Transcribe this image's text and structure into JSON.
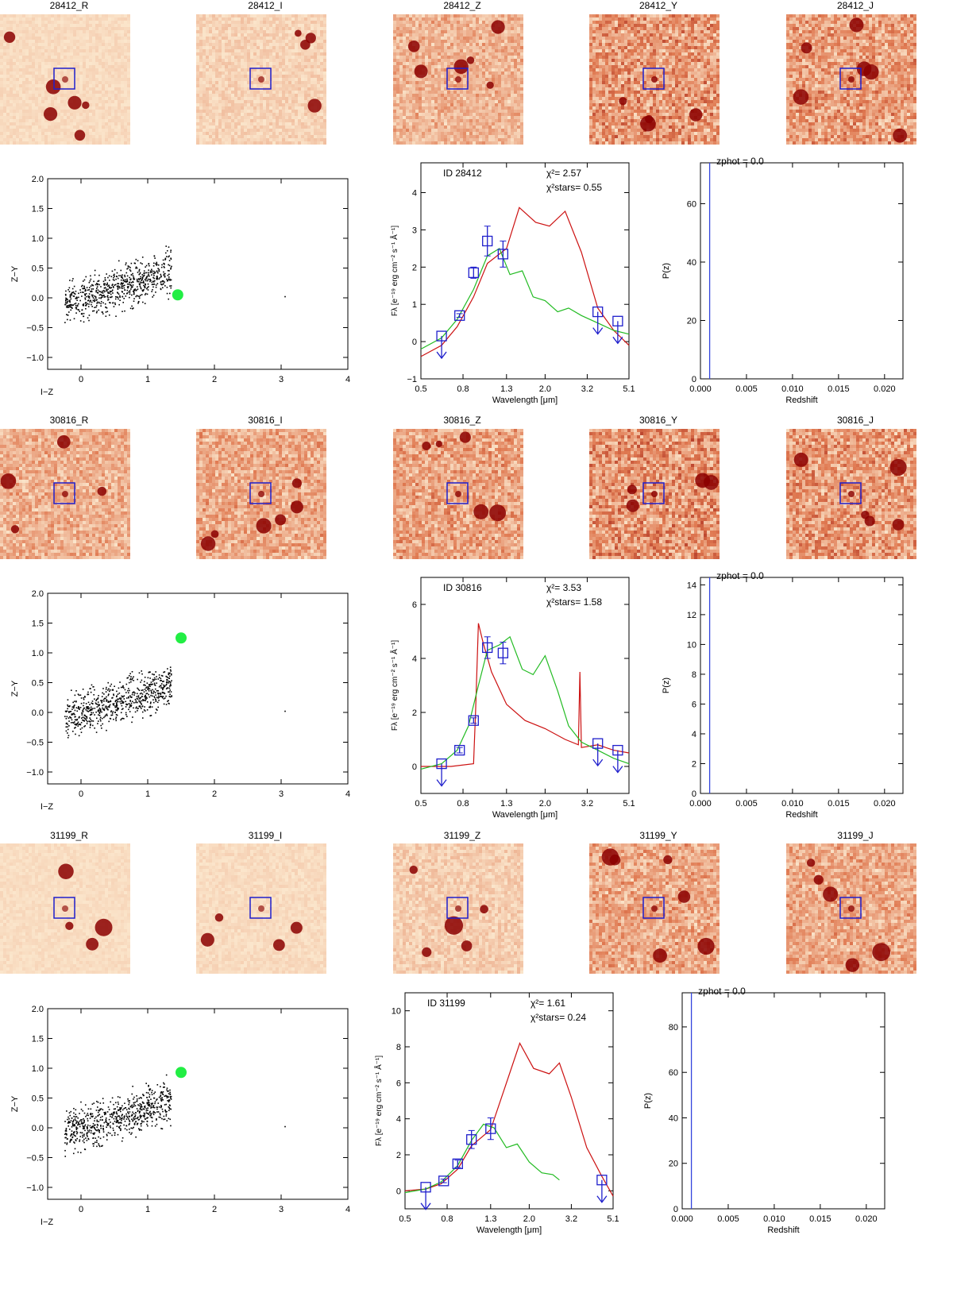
{
  "objects": [
    {
      "id": "28412",
      "stamps": [
        {
          "label": "28412_R",
          "bright": 0.1
        },
        {
          "label": "28412_I",
          "bright": 0.18
        },
        {
          "label": "28412_Z",
          "bright": 0.32
        },
        {
          "label": "28412_Y",
          "bright": 0.55
        },
        {
          "label": "28412_J",
          "bright": 0.5
        }
      ]
    },
    {
      "id": "30816",
      "stamps": [
        {
          "label": "30816_R",
          "bright": 0.35
        },
        {
          "label": "30816_I",
          "bright": 0.4
        },
        {
          "label": "30816_Z",
          "bright": 0.45
        },
        {
          "label": "30816_Y",
          "bright": 0.58
        },
        {
          "label": "30816_J",
          "bright": 0.52
        }
      ]
    },
    {
      "id": "31199",
      "stamps": [
        {
          "label": "31199_R",
          "bright": 0.08
        },
        {
          "label": "31199_I",
          "bright": 0.1
        },
        {
          "label": "31199_Z",
          "bright": 0.22
        },
        {
          "label": "31199_Y",
          "bright": 0.42
        },
        {
          "label": "31199_J",
          "bright": 0.4
        }
      ]
    }
  ],
  "chart_data": [
    {
      "type": "scatter",
      "id": "28412",
      "xlabel": "I−Z",
      "ylabel": "Z−Y",
      "xlim": [
        -0.5,
        4
      ],
      "ylim": [
        -1.2,
        2.0
      ],
      "xticks": [
        "0",
        "1",
        "2",
        "3",
        "4"
      ],
      "xtick_values": [
        0,
        1,
        2,
        3,
        4
      ],
      "yticks": [
        "2.0",
        "1.5",
        "1.0",
        "0.5",
        "0.0",
        "−0.5",
        "−1.0"
      ],
      "ytick_values": [
        2.0,
        1.5,
        1.0,
        0.5,
        0.0,
        -0.5,
        -1.0
      ],
      "highlight_point": {
        "x": 1.45,
        "y": 0.05,
        "color": "#22ee44"
      },
      "stars_note": "star locus cloud around x -0.2 to 1.4, y -0.6 to 0.6"
    },
    {
      "type": "line",
      "id": "28412",
      "title": "ID 28412",
      "chi2_label": "χ²=",
      "chi2": "2.57",
      "chi2_stars_label": "χ²stars=",
      "chi2_stars": "0.55",
      "xlabel": "Wavelength [μm]",
      "ylabel": "Fλ [e⁻¹⁹ erg cm⁻² s⁻¹ Å⁻¹]",
      "xticks": [
        "0.5",
        "0.8",
        "1.3",
        "2.0",
        "3.2",
        "5.1"
      ],
      "xtick_values": [
        0.5,
        0.8,
        1.3,
        2.0,
        3.2,
        5.1
      ],
      "ylim": [
        -1,
        4.8
      ],
      "yticks": [
        "4",
        "3",
        "2",
        "1",
        "0",
        "−1"
      ],
      "ytick_values": [
        4,
        3,
        2,
        1,
        0,
        -1
      ],
      "series": [
        {
          "name": "galaxy fit",
          "color": "#cc1111",
          "x": [
            0.5,
            0.63,
            0.75,
            0.9,
            1.05,
            1.3,
            1.5,
            1.8,
            2.1,
            2.5,
            3.0,
            3.6,
            4.3,
            5.1
          ],
          "values": [
            -0.4,
            -0.1,
            0.4,
            1.2,
            2.1,
            2.5,
            3.6,
            3.2,
            3.1,
            3.5,
            2.4,
            0.9,
            0.3,
            -0.1
          ]
        },
        {
          "name": "star fit",
          "color": "#22bb22",
          "x": [
            0.5,
            0.63,
            0.75,
            0.9,
            1.05,
            1.2,
            1.35,
            1.55,
            1.75,
            2.0,
            2.3,
            2.6,
            3.0,
            3.6,
            4.3,
            5.1
          ],
          "values": [
            -0.2,
            0.1,
            0.6,
            1.4,
            2.3,
            2.5,
            1.8,
            1.9,
            1.2,
            1.1,
            0.8,
            0.9,
            0.7,
            0.5,
            0.3,
            0.2
          ]
        }
      ],
      "photometry": [
        {
          "x": 0.63,
          "y": 0.15,
          "upper_limit": true
        },
        {
          "x": 0.77,
          "y": 0.7,
          "err": 0.05
        },
        {
          "x": 0.9,
          "y": 1.85,
          "err": 0.15
        },
        {
          "x": 1.05,
          "y": 2.7,
          "err": 0.4
        },
        {
          "x": 1.25,
          "y": 2.35,
          "err": 0.35
        },
        {
          "x": 3.6,
          "y": 0.8,
          "upper_limit": true
        },
        {
          "x": 4.5,
          "y": 0.55,
          "upper_limit": true
        }
      ]
    },
    {
      "type": "line",
      "id": "28412",
      "xlabel": "Redshift",
      "ylabel": "P(z)",
      "annotation": "zphot = 0.0",
      "xlim": [
        0,
        0.022
      ],
      "xticks": [
        "0.000",
        "0.005",
        "0.010",
        "0.015",
        "0.020"
      ],
      "xtick_values": [
        0,
        0.005,
        0.01,
        0.015,
        0.02
      ],
      "ylim": [
        0,
        74
      ],
      "yticks": [
        "60",
        "40",
        "20",
        "0"
      ],
      "ytick_values": [
        60,
        40,
        20,
        0
      ],
      "spike": {
        "x": 0.001,
        "value": 74
      }
    },
    {
      "type": "scatter",
      "id": "30816",
      "xlabel": "I−Z",
      "ylabel": "Z−Y",
      "xlim": [
        -0.5,
        4
      ],
      "ylim": [
        -1.2,
        2.0
      ],
      "xticks": [
        "0",
        "1",
        "2",
        "3",
        "4"
      ],
      "xtick_values": [
        0,
        1,
        2,
        3,
        4
      ],
      "yticks": [
        "2.0",
        "1.5",
        "1.0",
        "0.5",
        "0.0",
        "−0.5",
        "−1.0"
      ],
      "ytick_values": [
        2.0,
        1.5,
        1.0,
        0.5,
        0.0,
        -0.5,
        -1.0
      ],
      "highlight_point": {
        "x": 1.5,
        "y": 1.25,
        "color": "#22ee44"
      }
    },
    {
      "type": "line",
      "id": "30816",
      "title": "ID 30816",
      "chi2_label": "χ²=",
      "chi2": "3.53",
      "chi2_stars_label": "χ²stars=",
      "chi2_stars": "1.58",
      "xlabel": "Wavelength [μm]",
      "ylabel": "Fλ [e⁻¹⁹ erg cm⁻² s⁻¹ Å⁻¹]",
      "xticks": [
        "0.5",
        "0.8",
        "1.3",
        "2.0",
        "3.2",
        "5.1"
      ],
      "xtick_values": [
        0.5,
        0.8,
        1.3,
        2.0,
        3.2,
        5.1
      ],
      "ylim": [
        -1,
        7
      ],
      "yticks": [
        "6",
        "4",
        "2",
        "0"
      ],
      "ytick_values": [
        6,
        4,
        2,
        0
      ],
      "series": [
        {
          "name": "galaxy fit",
          "color": "#cc1111",
          "x": [
            0.5,
            0.7,
            0.9,
            0.92,
            0.95,
            1.0,
            1.1,
            1.3,
            1.6,
            2.0,
            2.5,
            2.9,
            2.95,
            3.0,
            3.6,
            4.3,
            5.1
          ],
          "values": [
            0.0,
            0.0,
            0.1,
            2.0,
            5.3,
            4.6,
            3.5,
            2.3,
            1.7,
            1.4,
            1.0,
            0.8,
            3.5,
            0.7,
            0.8,
            0.6,
            0.5
          ]
        },
        {
          "name": "star fit",
          "color": "#22bb22",
          "x": [
            0.5,
            0.63,
            0.75,
            0.85,
            0.95,
            1.05,
            1.2,
            1.35,
            1.55,
            1.75,
            2.0,
            2.3,
            2.6,
            3.0,
            3.6,
            4.3,
            5.1
          ],
          "values": [
            -0.1,
            0.1,
            0.6,
            1.5,
            3.0,
            4.3,
            4.5,
            4.8,
            3.6,
            3.4,
            4.1,
            2.8,
            1.5,
            0.9,
            0.6,
            0.3,
            0.1
          ]
        }
      ],
      "photometry": [
        {
          "x": 0.63,
          "y": 0.1,
          "upper_limit": true
        },
        {
          "x": 0.77,
          "y": 0.6,
          "err": 0.1
        },
        {
          "x": 0.9,
          "y": 1.7,
          "err": 0.1
        },
        {
          "x": 1.05,
          "y": 4.4,
          "err": 0.4
        },
        {
          "x": 1.25,
          "y": 4.2,
          "err": 0.4
        },
        {
          "x": 3.6,
          "y": 0.85,
          "upper_limit": true
        },
        {
          "x": 4.5,
          "y": 0.6,
          "upper_limit": true
        }
      ]
    },
    {
      "type": "line",
      "id": "30816",
      "xlabel": "Redshift",
      "ylabel": "P(z)",
      "annotation": "zphot = 0.0",
      "xlim": [
        0,
        0.022
      ],
      "xticks": [
        "0.000",
        "0.005",
        "0.010",
        "0.015",
        "0.020"
      ],
      "xtick_values": [
        0,
        0.005,
        0.01,
        0.015,
        0.02
      ],
      "ylim": [
        0,
        14.5
      ],
      "yticks": [
        "14",
        "12",
        "10",
        "8",
        "6",
        "4",
        "2",
        "0"
      ],
      "ytick_values": [
        14,
        12,
        10,
        8,
        6,
        4,
        2,
        0
      ],
      "spike": {
        "x": 0.001,
        "value": 14.5
      }
    },
    {
      "type": "scatter",
      "id": "31199",
      "xlabel": "I−Z",
      "ylabel": "Z−Y",
      "xlim": [
        -0.5,
        4
      ],
      "ylim": [
        -1.2,
        2.0
      ],
      "xticks": [
        "0",
        "1",
        "2",
        "3",
        "4"
      ],
      "xtick_values": [
        0,
        1,
        2,
        3,
        4
      ],
      "yticks": [
        "2.0",
        "1.5",
        "1.0",
        "0.5",
        "0.0",
        "−0.5",
        "−1.0"
      ],
      "ytick_values": [
        2.0,
        1.5,
        1.0,
        0.5,
        0.0,
        -0.5,
        -1.0
      ],
      "highlight_point": {
        "x": 1.5,
        "y": 0.93,
        "color": "#22ee44"
      }
    },
    {
      "type": "line",
      "id": "31199",
      "title": "ID 31199",
      "chi2_label": "χ²=",
      "chi2": "1.61",
      "chi2_stars_label": "χ²stars=",
      "chi2_stars": "0.24",
      "xlabel": "Wavelength [μm]",
      "ylabel": "Fλ [e⁻¹⁹ erg cm⁻² s⁻¹ Å⁻¹]",
      "xticks": [
        "0.5",
        "0.8",
        "1.3",
        "2.0",
        "3.2",
        "5.1"
      ],
      "xtick_values": [
        0.5,
        0.8,
        1.3,
        2.0,
        3.2,
        5.1
      ],
      "ylim": [
        -1,
        11
      ],
      "yticks": [
        "10",
        "8",
        "6",
        "4",
        "2",
        "0"
      ],
      "ytick_values": [
        10,
        8,
        6,
        4,
        2,
        0
      ],
      "series": [
        {
          "name": "galaxy fit",
          "color": "#cc1111",
          "x": [
            0.5,
            0.63,
            0.75,
            0.9,
            1.05,
            1.3,
            1.5,
            1.8,
            2.1,
            2.5,
            2.8,
            3.2,
            3.8,
            4.5,
            5.1
          ],
          "values": [
            0.0,
            0.1,
            0.4,
            1.2,
            2.5,
            3.4,
            5.5,
            8.2,
            6.8,
            6.5,
            7.1,
            5.2,
            2.4,
            0.8,
            -0.3
          ]
        },
        {
          "name": "star fit",
          "color": "#22bb22",
          "x": [
            0.5,
            0.63,
            0.75,
            0.9,
            1.05,
            1.2,
            1.35,
            1.55,
            1.75,
            2.0,
            2.3,
            2.6,
            2.8
          ],
          "values": [
            -0.1,
            0.1,
            0.5,
            1.4,
            2.8,
            3.7,
            3.5,
            2.4,
            2.6,
            1.6,
            1.0,
            0.9,
            0.6
          ]
        }
      ],
      "photometry": [
        {
          "x": 0.63,
          "y": 0.2,
          "upper_limit": true
        },
        {
          "x": 0.77,
          "y": 0.55,
          "err": 0.1
        },
        {
          "x": 0.9,
          "y": 1.5,
          "err": 0.2
        },
        {
          "x": 1.05,
          "y": 2.85,
          "err": 0.5
        },
        {
          "x": 1.3,
          "y": 3.45,
          "err": 0.6
        },
        {
          "x": 4.5,
          "y": 0.6,
          "upper_limit": true
        }
      ]
    },
    {
      "type": "line",
      "id": "31199",
      "xlabel": "Redshift",
      "ylabel": "P(z)",
      "annotation": "zphot = 0.0",
      "xlim": [
        0,
        0.022
      ],
      "xticks": [
        "0.000",
        "0.005",
        "0.010",
        "0.015",
        "0.020"
      ],
      "xtick_values": [
        0,
        0.005,
        0.01,
        0.015,
        0.02
      ],
      "ylim": [
        0,
        95
      ],
      "yticks": [
        "80",
        "60",
        "40",
        "20",
        "0"
      ],
      "ytick_values": [
        80,
        60,
        40,
        20,
        0
      ],
      "spike": {
        "x": 0.001,
        "value": 95
      }
    }
  ],
  "colors": {
    "stamp_light": "#fbe6cc",
    "stamp_dark": "#8b0000",
    "box": "#1f1fcc",
    "axis": "#000000"
  }
}
